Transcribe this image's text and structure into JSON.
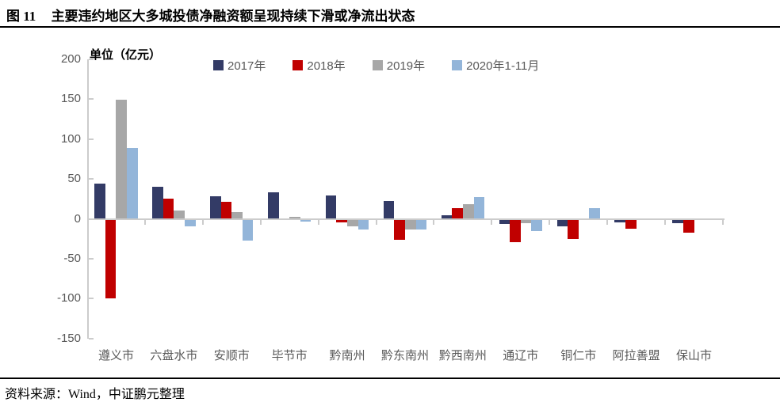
{
  "header": {
    "figure_no": "图 11",
    "title": "主要违约地区大多城投债净融资额呈现持续下滑或净流出状态"
  },
  "footer": {
    "source": "资料来源：Wind，中证鹏元整理"
  },
  "chart_data": {
    "type": "bar",
    "title": "图 11 主要违约地区大多城投债净融资额呈现持续下滑或净流出状态",
    "unit_label": "单位（亿元）",
    "xlabel": "",
    "ylabel": "单位（亿元）",
    "ylim": [
      -150,
      200
    ],
    "yticks": [
      200,
      150,
      100,
      50,
      0,
      -50,
      -100,
      -150
    ],
    "grid": false,
    "legend_position": "top",
    "categories": [
      "遵义市",
      "六盘水市",
      "安顺市",
      "毕节市",
      "黔南州",
      "黔东南州",
      "黔西南州",
      "通辽市",
      "铜仁市",
      "阿拉善盟",
      "保山市"
    ],
    "series": [
      {
        "name": "2017年",
        "color": "#333B66",
        "values": [
          44,
          40,
          28,
          33,
          29,
          22,
          4,
          -6,
          -9,
          -4,
          -5
        ]
      },
      {
        "name": "2018年",
        "color": "#C00000",
        "values": [
          -100,
          25,
          21,
          0,
          -4,
          -26,
          13,
          -29,
          -25,
          -12,
          -17
        ]
      },
      {
        "name": "2019年",
        "color": "#A7A7A7",
        "values": [
          149,
          10,
          8,
          2,
          -9,
          -13,
          18,
          -5,
          0,
          0,
          0
        ]
      },
      {
        "name": "2020年1-11月",
        "color": "#93B5D9",
        "values": [
          89,
          -9,
          -27,
          -3,
          -13,
          -13,
          27,
          -15,
          13,
          0,
          0
        ]
      }
    ],
    "axis_color": "#CCCCCC",
    "label_color": "#595959"
  }
}
